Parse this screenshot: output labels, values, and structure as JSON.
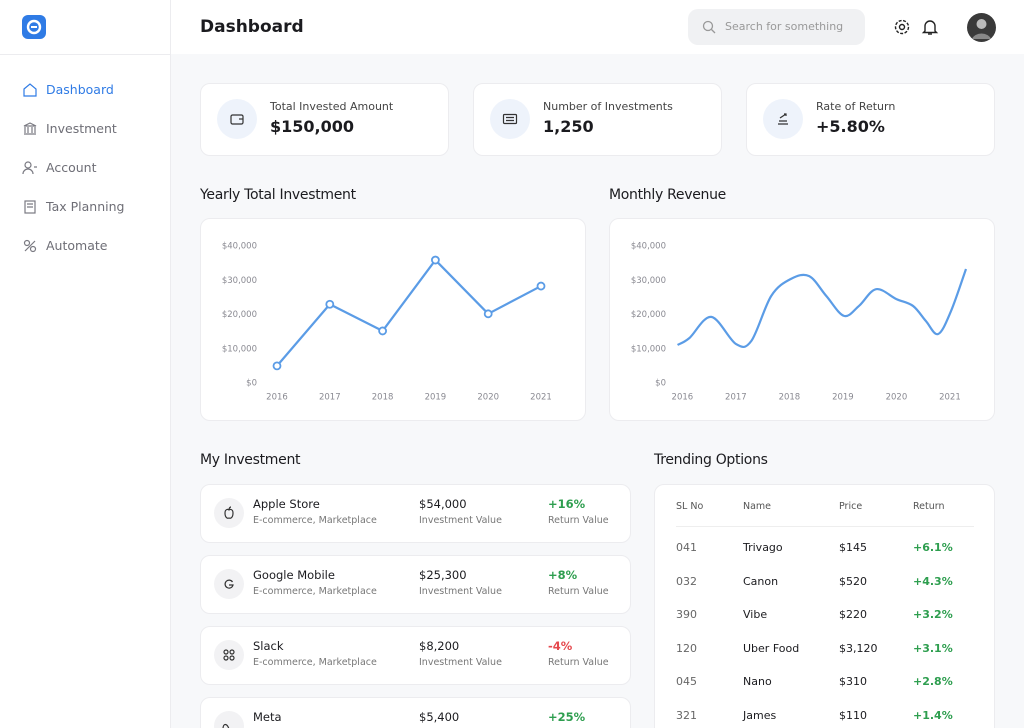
{
  "sidebar": {
    "nav": [
      "Dashboard",
      "Investment",
      "Account",
      "Tax Planning",
      "Automate"
    ],
    "active": 0
  },
  "header": {
    "title": "Dashboard",
    "search_placeholder": "Search for something"
  },
  "stats": [
    {
      "label": "Total Invested Amount",
      "value": "$150,000"
    },
    {
      "label": "Number of Investments",
      "value": "1,250"
    },
    {
      "label": "Rate of Return",
      "value": "+5.80%"
    }
  ],
  "chart_data": [
    {
      "type": "line",
      "title": "Yearly Total Investment",
      "categories": [
        "2016",
        "2017",
        "2018",
        "2019",
        "2020",
        "2021"
      ],
      "values": [
        5000,
        23000,
        15200,
        35900,
        20200,
        28300
      ],
      "color": "#5b9ce6",
      "markers": true,
      "smooth": false,
      "ylim": [
        0,
        40000
      ],
      "yticks": [
        {
          "value": 0,
          "label": "$0"
        },
        {
          "value": 10000,
          "label": "$10,000"
        },
        {
          "value": 20000,
          "label": "$20,000"
        },
        {
          "value": 30000,
          "label": "$30,000"
        },
        {
          "value": 40000,
          "label": "$40,000"
        }
      ]
    },
    {
      "type": "line",
      "title": "Monthly Revenue",
      "x": [
        2015.91,
        2016.13,
        2016.54,
        2017.0,
        2017.29,
        2017.66,
        2018.03,
        2018.37,
        2018.69,
        2019.02,
        2019.3,
        2019.62,
        2020.0,
        2020.31,
        2020.55,
        2020.78,
        2021.02,
        2021.3
      ],
      "values": [
        11100,
        13100,
        19300,
        11400,
        12300,
        25400,
        30400,
        31200,
        25400,
        19600,
        22500,
        27400,
        24500,
        22500,
        18100,
        14300,
        21000,
        33300
      ],
      "color": "#5b9ce6",
      "markers": false,
      "smooth": true,
      "xlim": [
        2015.9,
        2021.3
      ],
      "xticks": [
        2016,
        2017,
        2018,
        2019,
        2020,
        2021
      ],
      "ylim": [
        0,
        40000
      ],
      "yticks": [
        {
          "value": 0,
          "label": "$0"
        },
        {
          "value": 10000,
          "label": "$10,000"
        },
        {
          "value": 20000,
          "label": "$20,000"
        },
        {
          "value": 30000,
          "label": "$30,000"
        },
        {
          "value": 40000,
          "label": "$40,000"
        }
      ]
    }
  ],
  "investments": {
    "title": "My Investment",
    "value_caption": "Investment Value",
    "return_caption": "Return Value",
    "items": [
      {
        "name": "Apple Store",
        "category": "E-commerce, Marketplace",
        "value": "$54,000",
        "return": "+16%"
      },
      {
        "name": "Google Mobile",
        "category": "E-commerce, Marketplace",
        "value": "$25,300",
        "return": "+8%"
      },
      {
        "name": "Slack",
        "category": "E-commerce, Marketplace",
        "value": "$8,200",
        "return": "-4%"
      },
      {
        "name": "Meta",
        "value": "$5,400",
        "return": "+25%"
      }
    ]
  },
  "trending": {
    "title": "Trending Options",
    "columns": [
      "SL No",
      "Name",
      "Price",
      "Return"
    ],
    "rows": [
      [
        "041",
        "Trivago",
        "$145",
        "+6.1%"
      ],
      [
        "032",
        "Canon",
        "$520",
        "+4.3%"
      ],
      [
        "390",
        "Vibe",
        "$220",
        "+3.2%"
      ],
      [
        "120",
        "Uber Food",
        "$3,120",
        "+3.1%"
      ],
      [
        "045",
        "Nano",
        "$310",
        "+2.8%"
      ],
      [
        "321",
        "James",
        "$110",
        "+1.4%"
      ]
    ]
  }
}
